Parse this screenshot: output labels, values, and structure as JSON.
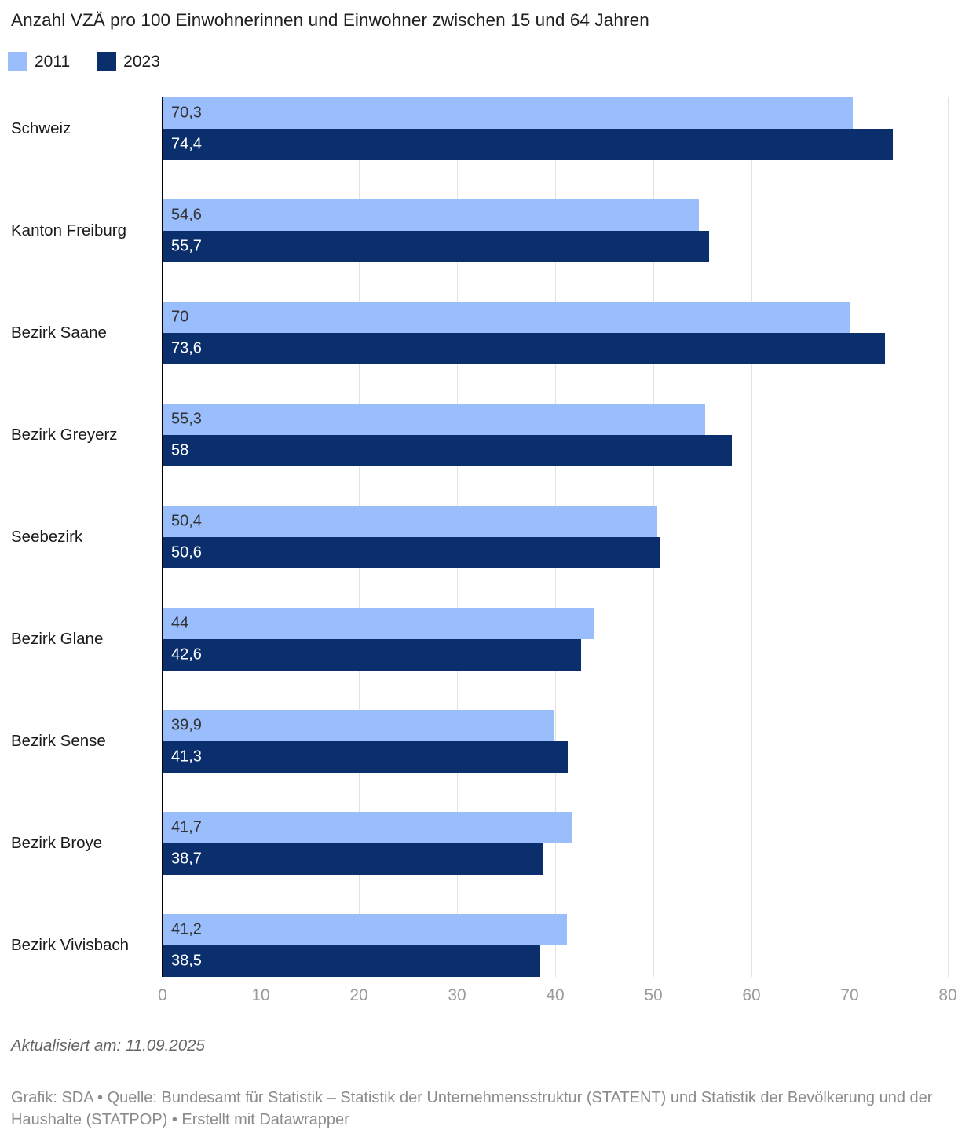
{
  "header": {
    "title": "Anzahl VZÄ pro 100 Einwohnerinnen und Einwohner zwischen 15 und 64 Jahren"
  },
  "chart_data": {
    "type": "bar",
    "orientation": "horizontal",
    "title": "Anzahl VZÄ pro 100 Einwohnerinnen und Einwohner zwischen 15 und 64 Jahren",
    "categories": [
      "Schweiz",
      "Kanton Freiburg",
      "Bezirk Saane",
      "Bezirk Greyerz",
      "Seebezirk",
      "Bezirk Glane",
      "Bezirk Sense",
      "Bezirk Broye",
      "Bezirk Vivisbach"
    ],
    "series": [
      {
        "name": "2011",
        "color": "#9abdfc",
        "label_color": "#333333",
        "values": [
          70.3,
          54.6,
          70,
          55.3,
          50.4,
          44,
          39.9,
          41.7,
          41.2
        ],
        "labels": [
          "70,3",
          "54,6",
          "70",
          "55,3",
          "50,4",
          "44",
          "39,9",
          "41,7",
          "41,2"
        ]
      },
      {
        "name": "2023",
        "color": "#0b2f6d",
        "label_color": "#ffffff",
        "values": [
          74.4,
          55.7,
          73.6,
          58,
          50.6,
          42.6,
          41.3,
          38.7,
          38.5
        ],
        "labels": [
          "74,4",
          "55,7",
          "73,6",
          "58",
          "50,6",
          "42,6",
          "41,3",
          "38,7",
          "38,5"
        ]
      }
    ],
    "xlim": [
      0,
      80
    ],
    "ticks": [
      0,
      10,
      20,
      30,
      40,
      50,
      60,
      70,
      80
    ],
    "grid": "vertical",
    "legend_position": "top",
    "axis_color": "#000000",
    "gridline_color": "#e2e2e2",
    "tick_label_color": "#9b9b9b"
  },
  "legend": {
    "items": [
      {
        "label": "2011",
        "color": "#9abdfc"
      },
      {
        "label": "2023",
        "color": "#0b2f6d"
      }
    ]
  },
  "footer": {
    "updated": "Aktualisiert am: 11.09.2025",
    "source": "Grafik: SDA • Quelle: Bundesamt für Statistik – Statistik der Unternehmensstruktur (STATENT) und Statistik der Bevölkerung und der Haushalte (STATPOP) • Erstellt mit Datawrapper"
  }
}
